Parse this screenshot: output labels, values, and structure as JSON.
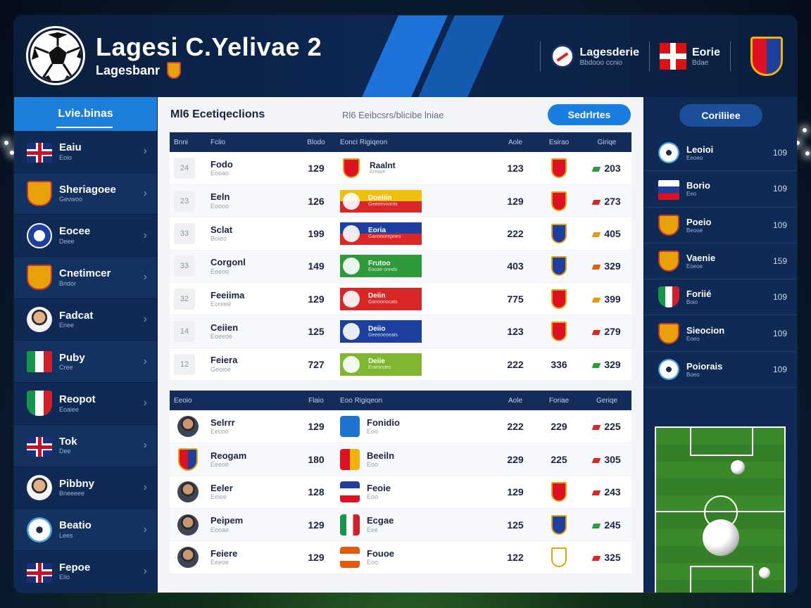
{
  "header": {
    "title": "Lagesi C.Yelivae 2",
    "subtitle": "Lagesbanr",
    "right_items": [
      {
        "title": "Lagesderie",
        "sub": "Bbdooo ccnio"
      },
      {
        "title": "Eorie",
        "sub": "Bdae"
      }
    ]
  },
  "left_sidebar": {
    "header": "Lvie.binas",
    "items": [
      {
        "name": "Eaiu",
        "sub": "Eoio",
        "icon": "uk-flag-icon"
      },
      {
        "name": "Sheriagoee",
        "sub": "Gevwoo",
        "icon": "crest-icon"
      },
      {
        "name": "Eocee",
        "sub": "Deee",
        "icon": "club-badge-icon"
      },
      {
        "name": "Cnetimcer",
        "sub": "Bridor",
        "icon": "crest-icon"
      },
      {
        "name": "Fadcat",
        "sub": "Enee",
        "icon": "player-face-icon"
      },
      {
        "name": "Puby",
        "sub": "Cree",
        "icon": "italy-flag-icon"
      },
      {
        "name": "Reopot",
        "sub": "Eoaiee",
        "icon": "mexico-crest-icon"
      },
      {
        "name": "Tok",
        "sub": "Dee",
        "icon": "uk-flag-icon"
      },
      {
        "name": "Pibbny",
        "sub": "Bneeeee",
        "icon": "player-face-icon"
      },
      {
        "name": "Beatio",
        "sub": "Lees",
        "icon": "soccer-ball-icon"
      },
      {
        "name": "Fepoe",
        "sub": "Elio",
        "icon": "uk-flag-icon"
      }
    ]
  },
  "main": {
    "title": "Ml6 Ecetiqeclions",
    "crumb": "Rl6 Eeibcsrs/blicibe  lniae",
    "button": "Sedrlrtes",
    "table1": {
      "headers": [
        "Bnni",
        "Fclio",
        "Blodo",
        "Eonci Rigiqeon",
        "Aole",
        "Esirao",
        "Giriqe"
      ],
      "rows": [
        {
          "rank": "24",
          "name": "Fodo",
          "sub": "Eooao",
          "v1": "129",
          "club": "Raalnt",
          "club_sub": "Ereaoe",
          "v2": "123",
          "pts": "203"
        },
        {
          "rank": "23",
          "name": "Eeln",
          "sub": "Eoooo",
          "v1": "126",
          "club": "Doeliin",
          "club_sub": "Geeeevoonts",
          "v2": "129",
          "pts": "273"
        },
        {
          "rank": "33",
          "name": "Sclat",
          "sub": "Boieo",
          "v1": "199",
          "club": "Eoria",
          "club_sub": "Ganonorepnes",
          "v2": "222",
          "pts": "405"
        },
        {
          "rank": "33",
          "name": "Corgonl",
          "sub": "Eeeoo",
          "v1": "149",
          "club": "Frutoo",
          "club_sub": "Eooae onnds",
          "v2": "403",
          "pts": "329"
        },
        {
          "rank": "32",
          "name": "Feeiima",
          "sub": "Eoreee",
          "v1": "129",
          "club": "Deiin",
          "club_sub": "Ganoonocats",
          "v2": "775",
          "pts": "399"
        },
        {
          "rank": "14",
          "name": "Ceiien",
          "sub": "Eoeeoe",
          "v1": "125",
          "club": "Deiio",
          "club_sub": "Geeeoeoeats",
          "v2": "123",
          "pts": "279"
        },
        {
          "rank": "12",
          "name": "Feiera",
          "sub": "Geoioe",
          "v1": "727",
          "club": "Deiie",
          "club_sub": "Erarorotes",
          "v2": "222",
          "extra": "336",
          "pts": "329"
        }
      ]
    },
    "table2": {
      "headers": [
        "Eeoio",
        "Flaio",
        "Eoo Rigiqeon",
        "Aole",
        "Foriae",
        "Geriqe"
      ],
      "rows": [
        {
          "name": "Selrrr",
          "sub": "Eecoo",
          "v1": "129",
          "club": "Fonidio",
          "club_sub": "Eoo",
          "v2": "222",
          "v3": "229",
          "pts": "225"
        },
        {
          "name": "Reogam",
          "sub": "Eeeoe",
          "v1": "180",
          "club": "Beeiln",
          "club_sub": "Eoo",
          "v2": "229",
          "v3": "225",
          "pts": "305"
        },
        {
          "name": "Eeler",
          "sub": "Eeiee",
          "v1": "128",
          "club": "Feoie",
          "club_sub": "Eoo",
          "v2": "129",
          "v3": "",
          "pts": "243"
        },
        {
          "name": "Peipem",
          "sub": "Eooae",
          "v1": "129",
          "club": "Ecgae",
          "club_sub": "Eee",
          "v2": "125",
          "v3": "",
          "pts": "245"
        },
        {
          "name": "Feiere",
          "sub": "Eeeoe",
          "v1": "129",
          "club": "Fouoe",
          "club_sub": "Eoo",
          "v2": "122",
          "v3": "",
          "pts": "325"
        }
      ]
    }
  },
  "right_sidebar": {
    "button": "Coriliiee",
    "items": [
      {
        "name": "Leoioi",
        "sub": "Eeoeo",
        "val": "109",
        "icon": "soccer-ball-icon"
      },
      {
        "name": "Borio",
        "sub": "Eeo",
        "val": "109",
        "icon": "flag-icon"
      },
      {
        "name": "Poeio",
        "sub": "Beooe",
        "val": "109",
        "icon": "crest-icon"
      },
      {
        "name": "Vaenie",
        "sub": "Eoeoe",
        "val": "159",
        "icon": "crest-icon"
      },
      {
        "name": "Foriié",
        "sub": "Boio",
        "val": "109",
        "icon": "mexico-crest-icon"
      },
      {
        "name": "Sieocion",
        "sub": "Eoeo",
        "val": "109",
        "icon": "crest-icon"
      },
      {
        "name": "Poiorais",
        "sub": "Boeo",
        "val": "109",
        "icon": "soccer-ball-icon"
      }
    ]
  },
  "colors": {
    "accent": "#1c7fd9",
    "navy": "#0e2a55",
    "header": "#132c5a"
  }
}
